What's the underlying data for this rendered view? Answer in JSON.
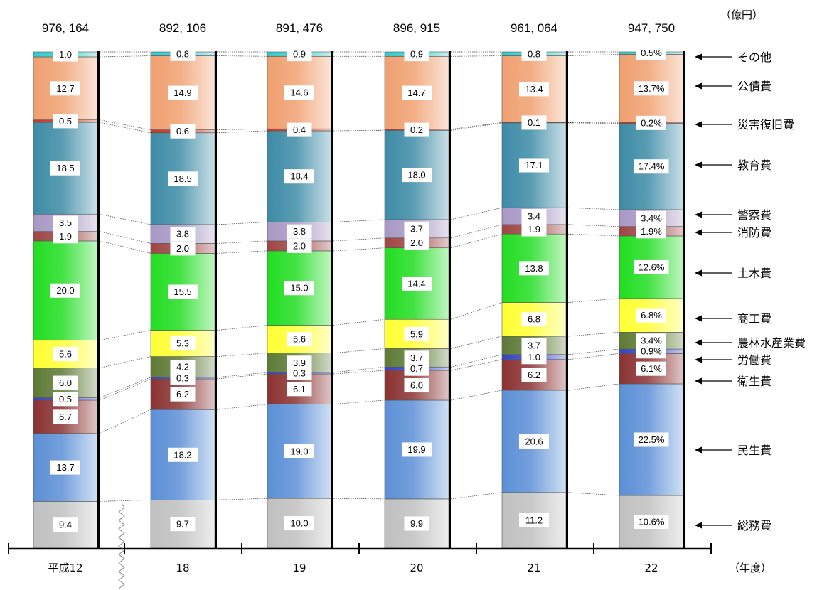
{
  "chart_data": {
    "type": "bar",
    "stacked": true,
    "normalized": true,
    "unit": "（億円）",
    "x_unit": "（年度）",
    "categories": [
      "平成12",
      "18",
      "19",
      "20",
      "21",
      "22"
    ],
    "totals": [
      "976, 164",
      "892, 106",
      "891, 476",
      "896, 915",
      "961, 064",
      "947, 750"
    ],
    "series": [
      {
        "name": "総務費",
        "color": "#c0c0c0",
        "values": [
          9.4,
          9.7,
          10.0,
          9.9,
          11.2,
          10.6
        ],
        "labels": [
          "9.4",
          "9.7",
          "10.0",
          "9.9",
          "11.2",
          "10.6%"
        ]
      },
      {
        "name": "民生費",
        "color": "#5b8fd6",
        "values": [
          13.7,
          18.2,
          19.0,
          19.9,
          20.6,
          22.5
        ],
        "labels": [
          "13.7",
          "18.2",
          "19.0",
          "19.9",
          "20.6",
          "22.5%"
        ]
      },
      {
        "name": "衛生費",
        "color": "#8b3232",
        "values": [
          6.7,
          6.2,
          6.1,
          6.0,
          6.2,
          6.1
        ],
        "labels": [
          "6.7",
          "6.2",
          "6.1",
          "6.0",
          "6.2",
          "6.1%"
        ]
      },
      {
        "name": "労働費",
        "color": "#3344cc",
        "values": [
          0.5,
          0.3,
          0.3,
          0.7,
          1.0,
          0.9
        ],
        "labels": [
          "0.5",
          "0.3",
          "0.3",
          "0.7",
          "1.0",
          "0.9%"
        ]
      },
      {
        "name": "農林水産業費",
        "color": "#5e7a36",
        "values": [
          6.0,
          4.2,
          3.9,
          3.7,
          3.7,
          3.4
        ],
        "labels": [
          "6.0",
          "4.2",
          "3.9",
          "3.7",
          "3.7",
          "3.4%"
        ]
      },
      {
        "name": "商工費",
        "color": "#ffff33",
        "values": [
          5.6,
          5.3,
          5.6,
          5.9,
          6.8,
          6.8
        ],
        "labels": [
          "5.6",
          "5.3",
          "5.6",
          "5.9",
          "6.8",
          "6.8%"
        ]
      },
      {
        "name": "土木費",
        "color": "#22dd22",
        "values": [
          20.0,
          15.5,
          15.0,
          14.4,
          13.8,
          12.6
        ],
        "labels": [
          "20.0",
          "15.5",
          "15.0",
          "14.4",
          "13.8",
          "12.6%"
        ]
      },
      {
        "name": "消防費",
        "color": "#a04545",
        "values": [
          1.9,
          2.0,
          2.0,
          2.0,
          1.9,
          1.9
        ],
        "labels": [
          "1.9",
          "2.0",
          "2.0",
          "2.0",
          "1.9",
          "1.9%"
        ]
      },
      {
        "name": "警察費",
        "color": "#a898c4",
        "values": [
          3.5,
          3.8,
          3.8,
          3.7,
          3.4,
          3.4
        ],
        "labels": [
          "3.5",
          "3.8",
          "3.8",
          "3.7",
          "3.4",
          "3.4%"
        ]
      },
      {
        "name": "教育費",
        "color": "#3d8ba6",
        "values": [
          18.5,
          18.5,
          18.4,
          18.0,
          17.1,
          17.4
        ],
        "labels": [
          "18.5",
          "18.5",
          "18.4",
          "18.0",
          "17.1",
          "17.4%"
        ]
      },
      {
        "name": "災害復旧費",
        "color": "#cc3322",
        "values": [
          0.5,
          0.6,
          0.4,
          0.2,
          0.1,
          0.2
        ],
        "labels": [
          "0.5",
          "0.6",
          "0.4",
          "0.2",
          "0.1",
          "0.2%"
        ]
      },
      {
        "name": "公債費",
        "color": "#f0a070",
        "values": [
          12.7,
          14.9,
          14.6,
          14.7,
          13.4,
          13.7
        ],
        "labels": [
          "12.7",
          "14.9",
          "14.6",
          "14.7",
          "13.4",
          "13.7%"
        ]
      },
      {
        "name": "その他",
        "color": "#33cccc",
        "values": [
          1.0,
          0.8,
          0.9,
          0.9,
          0.8,
          0.5
        ],
        "labels": [
          "1.0",
          "0.8",
          "0.9",
          "0.9",
          "0.8",
          "0.5%"
        ]
      }
    ],
    "legend_position": "right",
    "grid": false
  }
}
